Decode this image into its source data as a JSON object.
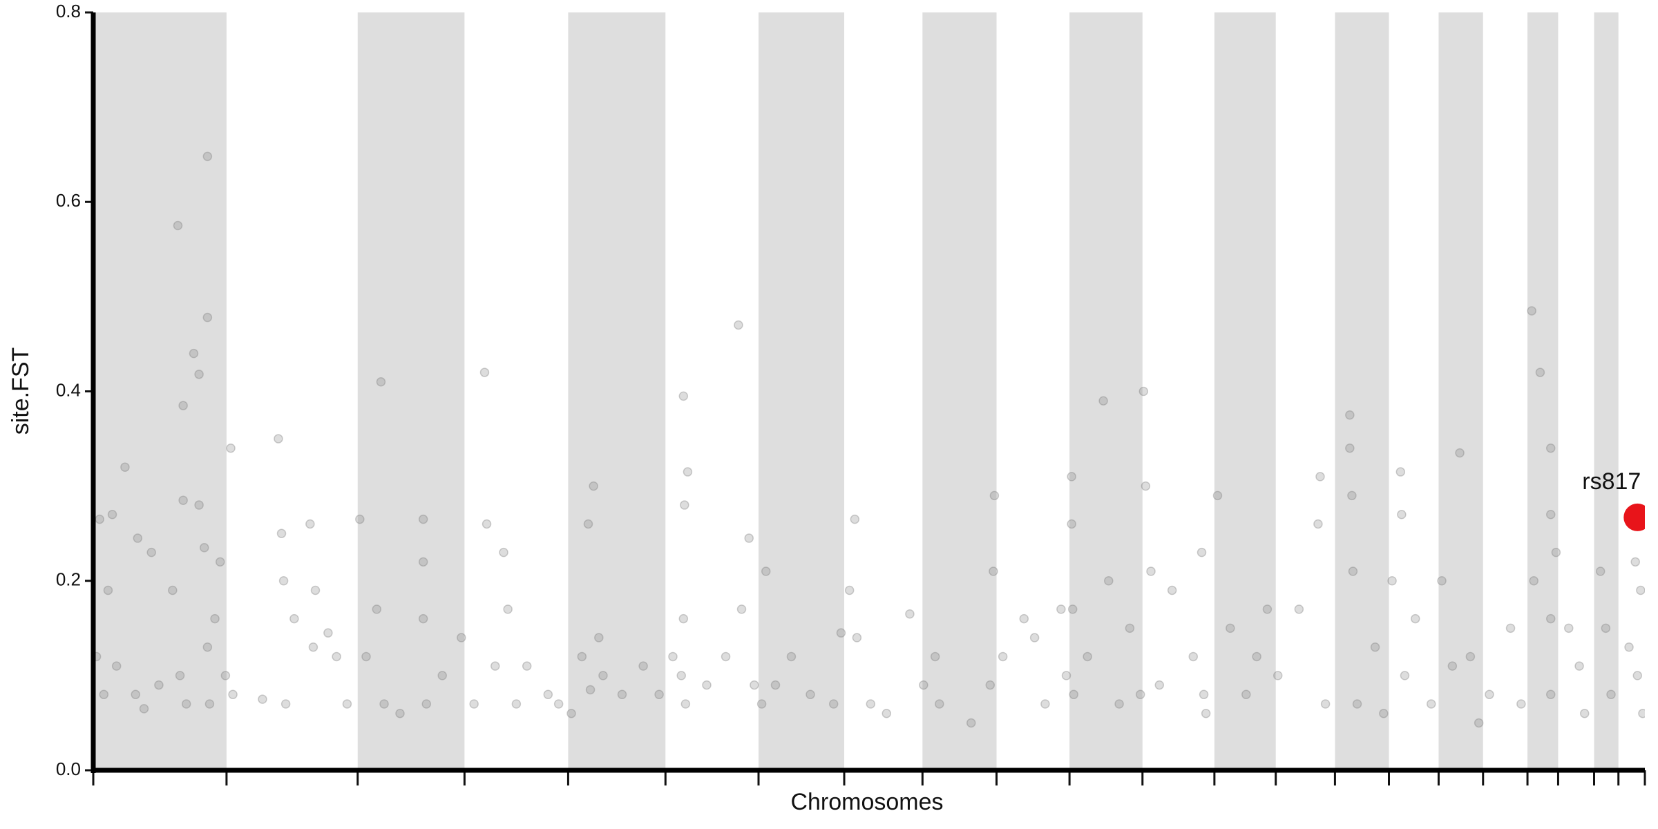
{
  "chart_data": {
    "type": "scatter",
    "ylabel": "site.FST",
    "xlabel": "Chromosomes",
    "ylim": [
      0,
      0.8
    ],
    "yticks": [
      {
        "value": 0,
        "label": "0.0"
      },
      0.2,
      0.4,
      0.6,
      0.8
    ],
    "xlim": [
      0,
      1467
    ],
    "chromosome_bounds": [
      0,
      126,
      250,
      351,
      449,
      541,
      629,
      710,
      784,
      854,
      923,
      992,
      1060,
      1118,
      1174,
      1225,
      1272,
      1314,
      1356,
      1385,
      1419,
      1442,
      1467
    ],
    "band_color": "#dedede",
    "color": "#777777",
    "x": [
      3,
      6,
      10,
      14,
      18,
      22,
      30,
      40,
      42,
      48,
      55,
      62,
      75,
      80,
      82,
      85,
      85,
      88,
      95,
      100,
      100,
      105,
      108,
      108,
      108,
      110,
      115,
      120,
      125,
      130,
      132,
      160,
      175,
      178,
      180,
      182,
      190,
      205,
      208,
      210,
      222,
      230,
      240,
      252,
      258,
      268,
      272,
      275,
      290,
      312,
      312,
      312,
      315,
      330,
      348,
      360,
      370,
      372,
      380,
      388,
      392,
      400,
      410,
      430,
      440,
      452,
      462,
      468,
      470,
      473,
      478,
      482,
      500,
      520,
      535,
      548,
      556,
      558,
      559,
      558,
      560,
      562,
      580,
      598,
      610,
      613,
      620,
      625,
      632,
      636,
      645,
      660,
      678,
      700,
      707,
      715,
      720,
      722,
      735,
      750,
      772,
      785,
      796,
      800,
      830,
      848,
      851,
      852,
      860,
      880,
      890,
      900,
      915,
      920,
      925,
      925,
      926,
      927,
      940,
      955,
      960,
      970,
      980,
      990,
      993,
      995,
      1000,
      1008,
      1020,
      1040,
      1048,
      1050,
      1052,
      1063,
      1075,
      1090,
      1100,
      1110,
      1120,
      1140,
      1158,
      1160,
      1165,
      1188,
      1188,
      1190,
      1191,
      1195,
      1212,
      1220,
      1228,
      1236,
      1237,
      1240,
      1250,
      1265,
      1275,
      1285,
      1292,
      1302,
      1310,
      1320,
      1340,
      1350,
      1360,
      1362,
      1368,
      1378,
      1378,
      1378,
      1378,
      1383,
      1395,
      1405,
      1410,
      1425,
      1430,
      1435,
      1452,
      1458,
      1460,
      1463,
      1465
    ],
    "values": [
      0.12,
      0.265,
      0.08,
      0.19,
      0.27,
      0.11,
      0.32,
      0.08,
      0.245,
      0.065,
      0.23,
      0.09,
      0.19,
      0.575,
      0.1,
      0.385,
      0.285,
      0.07,
      0.44,
      0.418,
      0.28,
      0.235,
      0.648,
      0.478,
      0.13,
      0.07,
      0.16,
      0.22,
      0.1,
      0.34,
      0.08,
      0.075,
      0.35,
      0.25,
      0.2,
      0.07,
      0.16,
      0.26,
      0.13,
      0.19,
      0.145,
      0.12,
      0.07,
      0.265,
      0.12,
      0.17,
      0.41,
      0.07,
      0.06,
      0.265,
      0.22,
      0.16,
      0.07,
      0.1,
      0.14,
      0.07,
      0.42,
      0.26,
      0.11,
      0.23,
      0.17,
      0.07,
      0.11,
      0.08,
      0.07,
      0.06,
      0.12,
      0.26,
      0.085,
      0.3,
      0.14,
      0.1,
      0.08,
      0.11,
      0.08,
      0.12,
      0.1,
      0.395,
      0.28,
      0.16,
      0.07,
      0.315,
      0.09,
      0.12,
      0.47,
      0.17,
      0.245,
      0.09,
      0.07,
      0.21,
      0.09,
      0.12,
      0.08,
      0.07,
      0.145,
      0.19,
      0.265,
      0.14,
      0.07,
      0.06,
      0.165,
      0.09,
      0.12,
      0.07,
      0.05,
      0.09,
      0.21,
      0.29,
      0.12,
      0.16,
      0.14,
      0.07,
      0.17,
      0.1,
      0.31,
      0.26,
      0.17,
      0.08,
      0.12,
      0.39,
      0.2,
      0.07,
      0.15,
      0.08,
      0.4,
      0.3,
      0.21,
      0.09,
      0.19,
      0.12,
      0.23,
      0.08,
      0.06,
      0.29,
      0.15,
      0.08,
      0.12,
      0.17,
      0.1,
      0.17,
      0.26,
      0.31,
      0.07,
      0.375,
      0.34,
      0.29,
      0.21,
      0.07,
      0.13,
      0.06,
      0.2,
      0.315,
      0.27,
      0.1,
      0.16,
      0.07,
      0.2,
      0.11,
      0.335,
      0.12,
      0.05,
      0.08,
      0.15,
      0.07,
      0.485,
      0.2,
      0.42,
      0.34,
      0.27,
      0.16,
      0.08,
      0.23,
      0.15,
      0.11,
      0.06,
      0.21,
      0.15,
      0.08,
      0.13,
      0.22,
      0.1,
      0.19,
      0.06
    ],
    "highlight": {
      "name": "rs817",
      "x": 1460,
      "value": 0.267,
      "color": "#e8141a"
    }
  }
}
